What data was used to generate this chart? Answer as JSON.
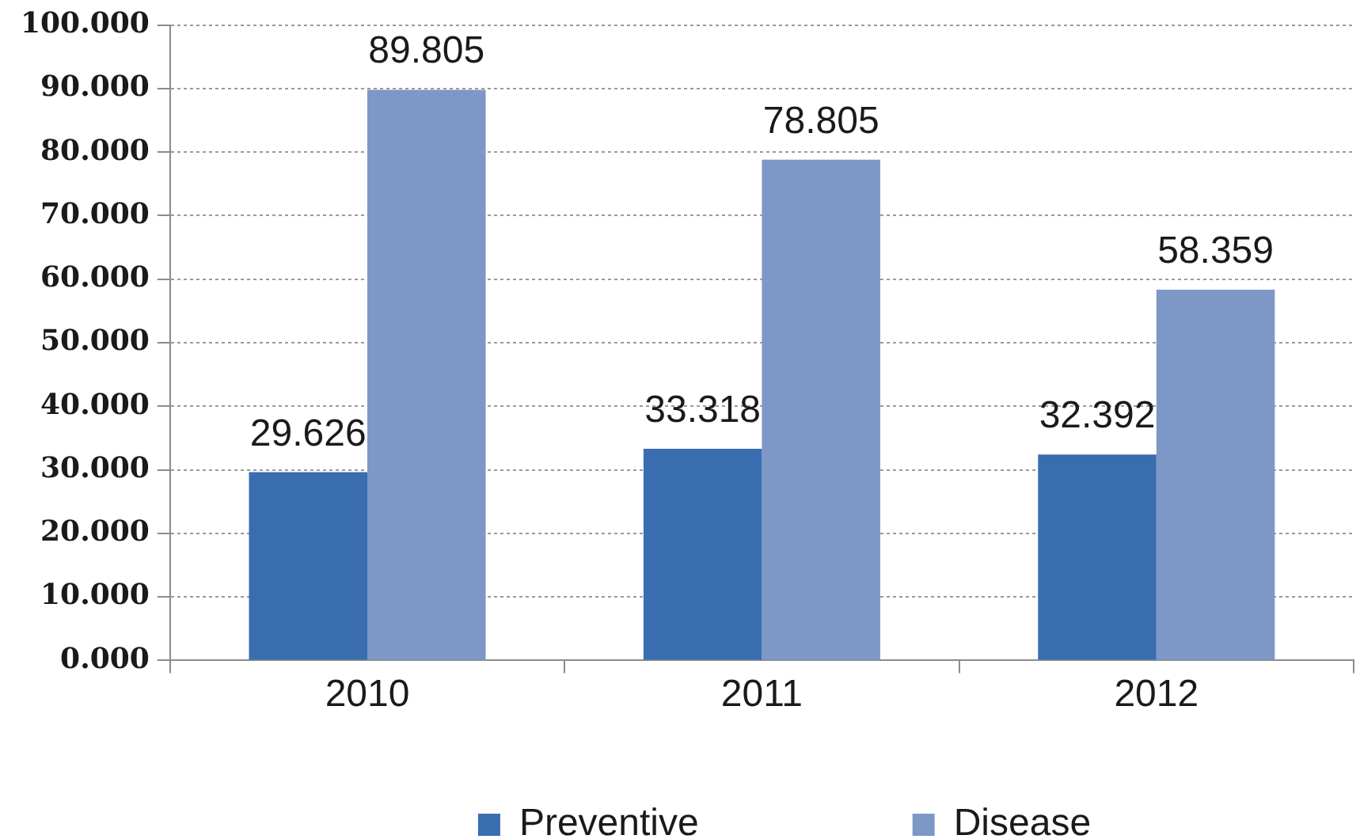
{
  "chart_data": {
    "type": "bar",
    "categories": [
      "2010",
      "2011",
      "2012"
    ],
    "series": [
      {
        "name": "Preventive",
        "color": "#3a6cb0",
        "values": [
          29.626,
          33.318,
          32.392
        ]
      },
      {
        "name": "Disease",
        "color": "#7d97c6",
        "values": [
          89.805,
          78.805,
          58.359
        ]
      }
    ],
    "ylim": [
      0,
      100
    ],
    "yticks": [
      {
        "value": 0,
        "label": "0.000"
      },
      {
        "value": 10,
        "label": "10.000"
      },
      {
        "value": 20,
        "label": "20.000"
      },
      {
        "value": 30,
        "label": "30.000"
      },
      {
        "value": 40,
        "label": "40.000"
      },
      {
        "value": 50,
        "label": "50.000"
      },
      {
        "value": 60,
        "label": "60.000"
      },
      {
        "value": 70,
        "label": "70.000"
      },
      {
        "value": 80,
        "label": "80.000"
      },
      {
        "value": 90,
        "label": "90.000"
      },
      {
        "value": 100,
        "label": "100.000"
      }
    ],
    "grid": "y",
    "legend": "bottom",
    "data_labels": true
  }
}
